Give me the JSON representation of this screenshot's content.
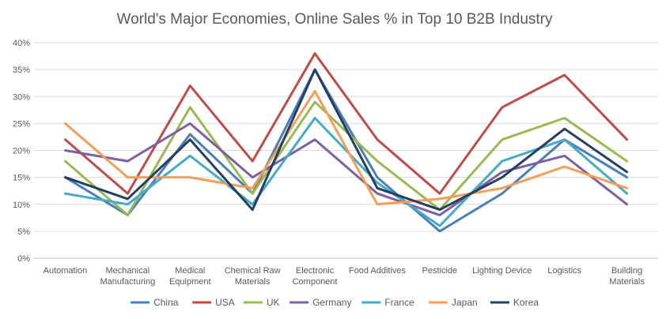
{
  "chart_data": {
    "type": "line",
    "title": "World's Major Economies, Online Sales % in Top 10 B2B Industry",
    "xlabel": "",
    "ylabel": "",
    "categories": [
      [
        "Automation"
      ],
      [
        "Mechanical",
        "Manufacturing"
      ],
      [
        "Medical",
        "Equipment"
      ],
      [
        "Chemical Raw",
        "Materials"
      ],
      [
        "Electronic",
        "Component"
      ],
      [
        "Food Additives"
      ],
      [
        "Pesticide"
      ],
      [
        "Lighting Device"
      ],
      [
        "Logistics"
      ],
      [
        "Building",
        "Materials"
      ]
    ],
    "ylim": [
      0,
      40
    ],
    "yticks": [
      0,
      5,
      10,
      15,
      20,
      25,
      30,
      35,
      40
    ],
    "ytick_labels": [
      "0%",
      "5%",
      "10%",
      "15%",
      "20%",
      "25%",
      "30%",
      "35%",
      "40%"
    ],
    "grid": true,
    "legend_position": "bottom",
    "series": [
      {
        "name": "China",
        "color": "#4a7ebb",
        "values": [
          15,
          8,
          23,
          12,
          35,
          15,
          5,
          12,
          22,
          15
        ]
      },
      {
        "name": "USA",
        "color": "#be4b48",
        "values": [
          22,
          12,
          32,
          18,
          38,
          22,
          12,
          28,
          34,
          22
        ]
      },
      {
        "name": "UK",
        "color": "#98b954",
        "values": [
          18,
          8,
          28,
          12,
          29,
          18,
          9,
          22,
          26,
          18
        ]
      },
      {
        "name": "Germany",
        "color": "#7d60a0",
        "values": [
          20,
          18,
          25,
          15,
          22,
          12,
          8,
          16,
          19,
          10
        ]
      },
      {
        "name": "France",
        "color": "#46aac5",
        "values": [
          12,
          10,
          19,
          10,
          26,
          14,
          6,
          18,
          22,
          12
        ]
      },
      {
        "name": "Japan",
        "color": "#f59d56",
        "values": [
          25,
          15,
          15,
          13,
          31,
          10,
          11,
          13,
          17,
          13
        ]
      },
      {
        "name": "Korea",
        "color": "#243f60",
        "values": [
          15,
          11,
          22,
          9,
          35,
          13,
          9,
          15,
          24,
          16
        ]
      }
    ]
  }
}
